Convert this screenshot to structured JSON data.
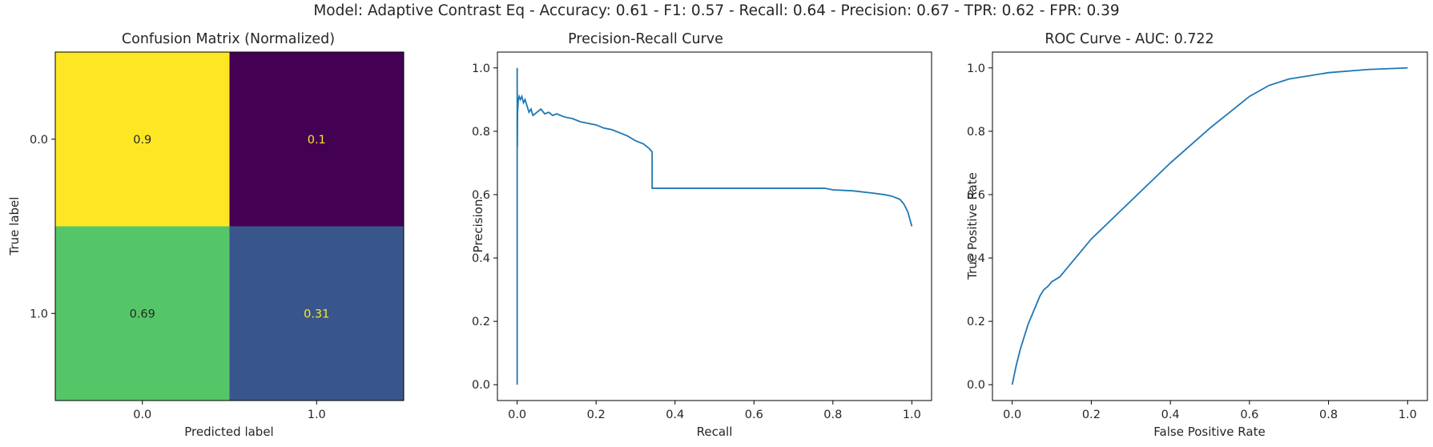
{
  "figure": {
    "suptitle": "Model: Adaptive Contrast Eq - Accuracy: 0.61 - F1: 0.57 - Recall: 0.64 - Precision: 0.67 - TPR: 0.62 - FPR: 0.39"
  },
  "colors": {
    "line": "#1f77b4",
    "axis": "#000000",
    "text_dark": "#262626",
    "text_light": "#fde725"
  },
  "chart_data": [
    {
      "type": "heatmap",
      "title": "Confusion Matrix (Normalized)",
      "xlabel": "Predicted label",
      "ylabel": "True label",
      "x_categories": [
        "0.0",
        "1.0"
      ],
      "y_categories": [
        "0.0",
        "1.0"
      ],
      "values": [
        [
          0.9,
          0.1
        ],
        [
          0.69,
          0.31
        ]
      ],
      "value_labels": [
        [
          "0.9",
          "0.1"
        ],
        [
          "0.69",
          "0.31"
        ]
      ],
      "colormap": "viridis",
      "cell_colors": [
        [
          "#fde725",
          "#440154"
        ],
        [
          "#55c667",
          "#39568c"
        ]
      ],
      "grid": false
    },
    {
      "type": "line",
      "title": "Precision-Recall Curve",
      "xlabel": "Recall",
      "ylabel": "Precision",
      "xlim": [
        -0.05,
        1.05
      ],
      "ylim": [
        -0.05,
        1.05
      ],
      "xticks": [
        "0.0",
        "0.2",
        "0.4",
        "0.6",
        "0.8",
        "1.0"
      ],
      "yticks": [
        "0.0",
        "0.2",
        "0.4",
        "0.6",
        "0.8",
        "1.0"
      ],
      "grid": false,
      "series": [
        {
          "x": [
            0.0,
            0.0,
            0.0005,
            0.001,
            0.002,
            0.003,
            0.005,
            0.008,
            0.012,
            0.016,
            0.02,
            0.025,
            0.03,
            0.035,
            0.04,
            0.05,
            0.06,
            0.07,
            0.08,
            0.09,
            0.1,
            0.12,
            0.14,
            0.16,
            0.18,
            0.2,
            0.22,
            0.24,
            0.26,
            0.28,
            0.3,
            0.32,
            0.335,
            0.342,
            0.342,
            0.4,
            0.5,
            0.6,
            0.7,
            0.78,
            0.8,
            0.85,
            0.9,
            0.93,
            0.95,
            0.97,
            0.98,
            0.99,
            1.0
          ],
          "y": [
            0.0,
            1.0,
            0.75,
            0.86,
            0.88,
            0.9,
            0.91,
            0.9,
            0.91,
            0.89,
            0.9,
            0.88,
            0.86,
            0.87,
            0.85,
            0.86,
            0.87,
            0.855,
            0.86,
            0.85,
            0.855,
            0.845,
            0.84,
            0.83,
            0.825,
            0.82,
            0.81,
            0.805,
            0.795,
            0.785,
            0.77,
            0.76,
            0.745,
            0.735,
            0.62,
            0.62,
            0.62,
            0.62,
            0.62,
            0.62,
            0.615,
            0.612,
            0.605,
            0.6,
            0.595,
            0.585,
            0.57,
            0.545,
            0.5
          ]
        }
      ]
    },
    {
      "type": "line",
      "title": "ROC Curve - AUC: 0.722",
      "xlabel": "False Positive Rate",
      "ylabel": "True Positive Rate",
      "xlim": [
        -0.05,
        1.05
      ],
      "ylim": [
        -0.05,
        1.05
      ],
      "xticks": [
        "0.0",
        "0.2",
        "0.4",
        "0.6",
        "0.8",
        "1.0"
      ],
      "yticks": [
        "0.0",
        "0.2",
        "0.4",
        "0.6",
        "0.8",
        "1.0"
      ],
      "grid": false,
      "series": [
        {
          "x": [
            0.0,
            0.005,
            0.01,
            0.02,
            0.03,
            0.04,
            0.05,
            0.06,
            0.07,
            0.08,
            0.09,
            0.1,
            0.12,
            0.2,
            0.3,
            0.4,
            0.5,
            0.55,
            0.6,
            0.65,
            0.7,
            0.8,
            0.9,
            1.0
          ],
          "y": [
            0.0,
            0.03,
            0.06,
            0.11,
            0.15,
            0.19,
            0.22,
            0.25,
            0.28,
            0.3,
            0.31,
            0.325,
            0.34,
            0.46,
            0.58,
            0.7,
            0.81,
            0.86,
            0.91,
            0.945,
            0.965,
            0.985,
            0.995,
            1.0
          ]
        }
      ]
    }
  ]
}
